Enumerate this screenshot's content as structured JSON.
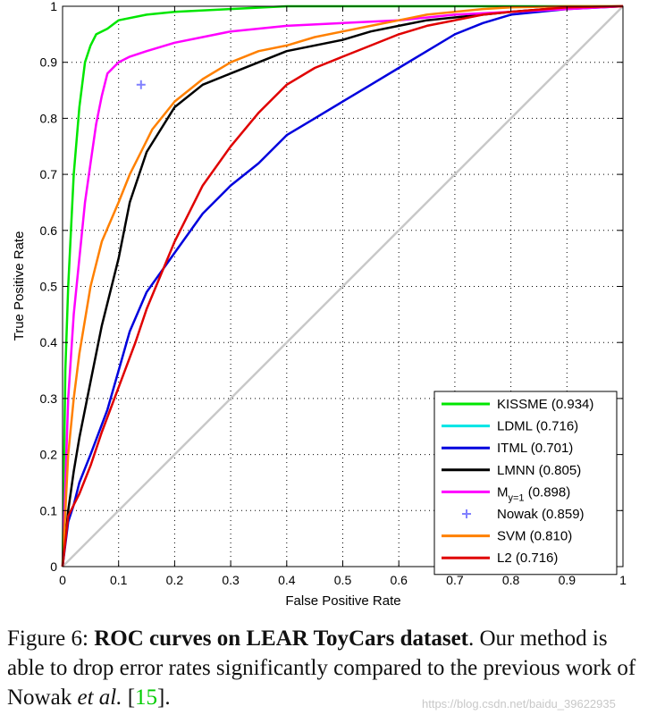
{
  "chart_data": {
    "type": "line",
    "xlabel": "False Positive Rate",
    "ylabel": "True Positive Rate",
    "xlim": [
      0,
      1
    ],
    "ylim": [
      0,
      1
    ],
    "xticks": [
      "0",
      "0.1",
      "0.2",
      "0.3",
      "0.4",
      "0.5",
      "0.6",
      "0.7",
      "0.8",
      "0.9",
      "1"
    ],
    "yticks": [
      "0",
      "0.1",
      "0.2",
      "0.3",
      "0.4",
      "0.5",
      "0.6",
      "0.7",
      "0.8",
      "0.9",
      "1"
    ],
    "grid": true,
    "legend_position": "bottom-right",
    "diagonal": {
      "color": "#c8c8c8",
      "points": [
        [
          0,
          0
        ],
        [
          1,
          1
        ]
      ]
    },
    "series": [
      {
        "name": "KISSME (0.934)",
        "color": "#00e600",
        "x": [
          0,
          0.005,
          0.01,
          0.02,
          0.03,
          0.04,
          0.05,
          0.06,
          0.08,
          0.1,
          0.15,
          0.2,
          0.3,
          0.4,
          0.6,
          1
        ],
        "y": [
          0,
          0.35,
          0.5,
          0.7,
          0.82,
          0.9,
          0.93,
          0.95,
          0.96,
          0.975,
          0.985,
          0.99,
          0.995,
          1,
          1,
          1
        ]
      },
      {
        "name": "LDML (0.716)",
        "color": "#00e5e5",
        "x": [
          0,
          1
        ],
        "y": [
          0,
          1
        ],
        "hidden_under": "L2"
      },
      {
        "name": "ITML (0.701)",
        "color": "#0000dd",
        "x": [
          0,
          0.01,
          0.02,
          0.03,
          0.05,
          0.08,
          0.1,
          0.12,
          0.15,
          0.2,
          0.25,
          0.3,
          0.35,
          0.4,
          0.45,
          0.5,
          0.55,
          0.6,
          0.65,
          0.7,
          0.75,
          0.8,
          0.9,
          1
        ],
        "y": [
          0,
          0.08,
          0.11,
          0.15,
          0.2,
          0.28,
          0.35,
          0.42,
          0.49,
          0.56,
          0.63,
          0.68,
          0.72,
          0.77,
          0.8,
          0.83,
          0.86,
          0.89,
          0.92,
          0.95,
          0.97,
          0.985,
          0.995,
          1
        ]
      },
      {
        "name": "LMNN (0.805)",
        "color": "#000000",
        "x": [
          0,
          0.01,
          0.02,
          0.03,
          0.05,
          0.07,
          0.1,
          0.12,
          0.15,
          0.2,
          0.25,
          0.3,
          0.35,
          0.4,
          0.5,
          0.55,
          0.6,
          0.65,
          0.7,
          0.75,
          0.8,
          0.9,
          1
        ],
        "y": [
          0,
          0.1,
          0.17,
          0.23,
          0.33,
          0.43,
          0.55,
          0.65,
          0.74,
          0.82,
          0.86,
          0.88,
          0.9,
          0.92,
          0.94,
          0.955,
          0.965,
          0.975,
          0.98,
          0.985,
          0.99,
          0.998,
          1
        ]
      },
      {
        "name": "M_y=1 (0.898)",
        "color": "#ff00ff",
        "x": [
          0,
          0.01,
          0.02,
          0.03,
          0.04,
          0.05,
          0.06,
          0.07,
          0.08,
          0.1,
          0.12,
          0.15,
          0.2,
          0.25,
          0.3,
          0.4,
          0.5,
          0.6,
          0.7,
          0.8,
          1
        ],
        "y": [
          0,
          0.3,
          0.45,
          0.55,
          0.65,
          0.72,
          0.79,
          0.84,
          0.88,
          0.9,
          0.91,
          0.92,
          0.935,
          0.945,
          0.955,
          0.965,
          0.97,
          0.975,
          0.985,
          0.99,
          1
        ]
      },
      {
        "name": "SVM (0.810)",
        "color": "#ff8000",
        "x": [
          0,
          0.01,
          0.02,
          0.03,
          0.05,
          0.07,
          0.1,
          0.12,
          0.14,
          0.16,
          0.2,
          0.25,
          0.3,
          0.35,
          0.4,
          0.45,
          0.5,
          0.55,
          0.6,
          0.65,
          0.7,
          0.75,
          0.8,
          0.9,
          1
        ],
        "y": [
          0,
          0.2,
          0.3,
          0.38,
          0.5,
          0.58,
          0.65,
          0.7,
          0.74,
          0.78,
          0.83,
          0.87,
          0.9,
          0.92,
          0.93,
          0.945,
          0.955,
          0.965,
          0.975,
          0.985,
          0.99,
          0.995,
          0.998,
          1,
          1
        ]
      },
      {
        "name": "L2 (0.716)",
        "color": "#e00000",
        "x": [
          0,
          0.01,
          0.02,
          0.03,
          0.05,
          0.07,
          0.1,
          0.13,
          0.15,
          0.2,
          0.25,
          0.3,
          0.35,
          0.4,
          0.45,
          0.5,
          0.55,
          0.6,
          0.65,
          0.7,
          0.75,
          0.8,
          0.9,
          1
        ],
        "y": [
          0,
          0.09,
          0.11,
          0.13,
          0.18,
          0.24,
          0.32,
          0.4,
          0.46,
          0.58,
          0.68,
          0.75,
          0.81,
          0.86,
          0.89,
          0.91,
          0.93,
          0.95,
          0.965,
          0.975,
          0.985,
          0.99,
          0.998,
          1
        ]
      }
    ],
    "points": [
      {
        "name": "Nowak (0.859)",
        "color": "#8080ff",
        "marker": "+",
        "x": 0.14,
        "y": 0.86
      }
    ],
    "legend": [
      {
        "label": "KISSME (0.934)",
        "color": "#00e600",
        "kind": "line"
      },
      {
        "label": "LDML (0.716)",
        "color": "#00e5e5",
        "kind": "line"
      },
      {
        "label": "ITML (0.701)",
        "color": "#0000dd",
        "kind": "line"
      },
      {
        "label": "LMNN (0.805)",
        "color": "#000000",
        "kind": "line"
      },
      {
        "label_main": "M",
        "label_sub": "y=1",
        "label_rest": " (0.898)",
        "color": "#ff00ff",
        "kind": "line"
      },
      {
        "label": "Nowak (0.859)",
        "color": "#8080ff",
        "kind": "marker"
      },
      {
        "label": "SVM (0.810)",
        "color": "#ff8000",
        "kind": "line"
      },
      {
        "label": "L2 (0.716)",
        "color": "#e00000",
        "kind": "line"
      }
    ]
  },
  "caption": {
    "prefix": "Figure 6:",
    "bold": "ROC curves on LEAR ToyCars dataset",
    "text1": ". Our method is able to drop error rates significantly compared to the previous work of Nowak ",
    "italic": "et al.",
    "text2": " [",
    "ref": "15",
    "text3": "]."
  },
  "watermark": "https://blog.csdn.net/baidu_39622935"
}
